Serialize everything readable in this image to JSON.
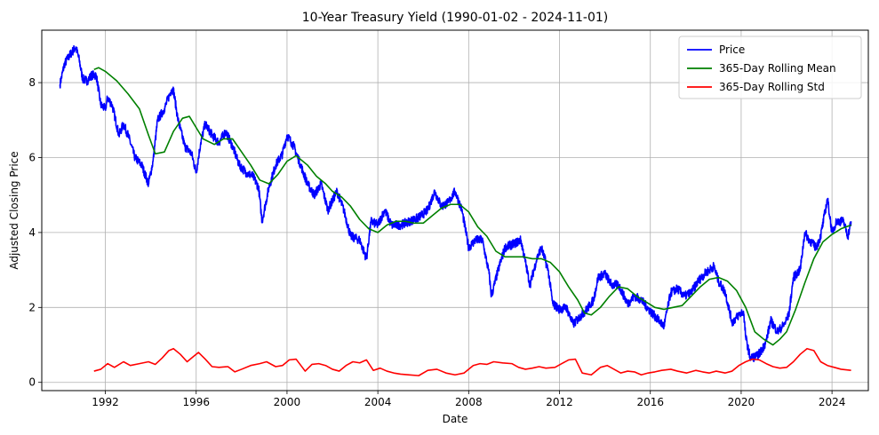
{
  "chart_data": {
    "type": "line",
    "title": "10-Year Treasury Yield (1990-01-02 - 2024-11-01)",
    "xlabel": "Date",
    "ylabel": "Adjusted Closing Price",
    "xlim": [
      1989.2,
      2025.6
    ],
    "ylim": [
      -0.22,
      9.4
    ],
    "xticks": [
      1992,
      1996,
      2000,
      2004,
      2008,
      2012,
      2016,
      2020,
      2024
    ],
    "xtick_labels": [
      "1992",
      "1996",
      "2000",
      "2004",
      "2008",
      "2012",
      "2016",
      "2020",
      "2024"
    ],
    "yticks": [
      0,
      2,
      4,
      6,
      8
    ],
    "ytick_labels": [
      "0",
      "2",
      "4",
      "6",
      "8"
    ],
    "grid": true,
    "legend_position": "top-right",
    "series": [
      {
        "name": "Price",
        "color": "#0000ff",
        "jitter": 0.12,
        "x": [
          1990.0,
          1990.2,
          1990.45,
          1990.7,
          1990.85,
          1991.0,
          1991.2,
          1991.4,
          1991.6,
          1991.8,
          1992.0,
          1992.1,
          1992.3,
          1992.6,
          1992.8,
          1993.0,
          1993.3,
          1993.6,
          1993.9,
          1994.1,
          1994.3,
          1994.6,
          1994.9,
          1995.0,
          1995.2,
          1995.5,
          1995.8,
          1996.0,
          1996.2,
          1996.4,
          1996.7,
          1997.0,
          1997.3,
          1997.6,
          1997.9,
          1998.2,
          1998.5,
          1998.75,
          1998.9,
          1999.2,
          1999.5,
          1999.8,
          2000.0,
          2000.3,
          2000.6,
          2000.9,
          2001.2,
          2001.5,
          2001.8,
          2002.2,
          2002.5,
          2002.8,
          2003.2,
          2003.5,
          2003.7,
          2004.0,
          2004.3,
          2004.6,
          2005.0,
          2005.4,
          2005.8,
          2006.2,
          2006.5,
          2006.8,
          2007.1,
          2007.4,
          2007.7,
          2008.0,
          2008.3,
          2008.6,
          2008.9,
          2009.0,
          2009.3,
          2009.6,
          2010.0,
          2010.3,
          2010.7,
          2011.0,
          2011.2,
          2011.5,
          2011.7,
          2012.0,
          2012.3,
          2012.6,
          2012.9,
          2013.2,
          2013.5,
          2013.7,
          2014.0,
          2014.3,
          2014.6,
          2015.0,
          2015.3,
          2015.6,
          2016.0,
          2016.3,
          2016.6,
          2016.9,
          2017.2,
          2017.5,
          2017.8,
          2018.1,
          2018.4,
          2018.8,
          2019.0,
          2019.3,
          2019.6,
          2019.9,
          2020.1,
          2020.2,
          2020.4,
          2020.7,
          2020.9,
          2021.1,
          2021.3,
          2021.6,
          2021.9,
          2022.1,
          2022.3,
          2022.6,
          2022.8,
          2023.0,
          2023.3,
          2023.5,
          2023.8,
          2024.0,
          2024.2,
          2024.5,
          2024.7,
          2024.84
        ],
        "y": [
          7.95,
          8.5,
          8.75,
          8.95,
          8.6,
          8.1,
          8.05,
          8.2,
          8.2,
          7.4,
          7.3,
          7.6,
          7.4,
          6.6,
          6.9,
          6.6,
          6.0,
          5.8,
          5.3,
          5.9,
          7.0,
          7.3,
          7.8,
          7.8,
          7.0,
          6.3,
          6.1,
          5.6,
          6.4,
          6.9,
          6.6,
          6.4,
          6.7,
          6.3,
          5.8,
          5.6,
          5.5,
          5.2,
          4.3,
          5.2,
          5.8,
          6.1,
          6.6,
          6.3,
          5.8,
          5.3,
          5.0,
          5.3,
          4.6,
          5.1,
          4.6,
          3.9,
          3.8,
          3.3,
          4.3,
          4.2,
          4.6,
          4.2,
          4.2,
          4.3,
          4.4,
          4.6,
          5.1,
          4.7,
          4.8,
          5.1,
          4.6,
          3.6,
          3.8,
          3.8,
          2.9,
          2.3,
          3.0,
          3.6,
          3.7,
          3.8,
          2.6,
          3.3,
          3.6,
          3.0,
          2.1,
          1.95,
          2.0,
          1.55,
          1.75,
          1.95,
          2.2,
          2.8,
          2.9,
          2.6,
          2.6,
          2.1,
          2.3,
          2.2,
          1.9,
          1.7,
          1.5,
          2.4,
          2.5,
          2.3,
          2.4,
          2.7,
          2.9,
          3.1,
          2.7,
          2.4,
          1.6,
          1.8,
          1.9,
          1.2,
          0.65,
          0.7,
          0.85,
          1.1,
          1.65,
          1.35,
          1.55,
          1.8,
          2.8,
          3.0,
          4.0,
          3.8,
          3.6,
          3.9,
          4.9,
          4.0,
          4.3,
          4.3,
          3.9,
          4.3
        ]
      },
      {
        "name": "365-Day Rolling Mean",
        "color": "#008000",
        "jitter": 0,
        "x": [
          1991.5,
          1991.7,
          1992.0,
          1992.5,
          1993.0,
          1993.5,
          1993.9,
          1994.2,
          1994.6,
          1995.0,
          1995.4,
          1995.7,
          1996.0,
          1996.3,
          1996.8,
          1997.2,
          1997.6,
          1998.0,
          1998.4,
          1998.8,
          1999.2,
          1999.6,
          2000.0,
          2000.4,
          2000.9,
          2001.3,
          2001.7,
          2002.0,
          2002.4,
          2002.8,
          2003.2,
          2003.6,
          2004.0,
          2004.4,
          2004.8,
          2005.2,
          2005.6,
          2006.0,
          2006.4,
          2006.8,
          2007.2,
          2007.6,
          2008.0,
          2008.4,
          2008.8,
          2009.2,
          2009.6,
          2010.0,
          2010.4,
          2010.8,
          2011.2,
          2011.6,
          2012.0,
          2012.4,
          2012.8,
          2013.1,
          2013.4,
          2013.8,
          2014.2,
          2014.6,
          2015.0,
          2015.4,
          2015.8,
          2016.2,
          2016.6,
          2017.0,
          2017.4,
          2017.8,
          2018.2,
          2018.6,
          2019.0,
          2019.4,
          2019.8,
          2020.2,
          2020.6,
          2021.0,
          2021.4,
          2021.7,
          2022.0,
          2022.4,
          2022.8,
          2023.2,
          2023.6,
          2024.0,
          2024.4,
          2024.84
        ],
        "y": [
          8.35,
          8.4,
          8.3,
          8.05,
          7.7,
          7.3,
          6.6,
          6.1,
          6.15,
          6.7,
          7.05,
          7.1,
          6.8,
          6.5,
          6.35,
          6.5,
          6.5,
          6.15,
          5.8,
          5.4,
          5.3,
          5.55,
          5.9,
          6.05,
          5.8,
          5.5,
          5.3,
          5.1,
          4.95,
          4.7,
          4.35,
          4.1,
          4.0,
          4.2,
          4.3,
          4.3,
          4.25,
          4.25,
          4.45,
          4.65,
          4.75,
          4.75,
          4.55,
          4.15,
          3.9,
          3.5,
          3.35,
          3.35,
          3.35,
          3.3,
          3.3,
          3.2,
          2.95,
          2.55,
          2.2,
          1.85,
          1.8,
          2.0,
          2.3,
          2.55,
          2.5,
          2.3,
          2.15,
          2.0,
          1.95,
          2.0,
          2.05,
          2.3,
          2.55,
          2.75,
          2.8,
          2.7,
          2.45,
          2.0,
          1.35,
          1.15,
          1.0,
          1.15,
          1.35,
          1.95,
          2.65,
          3.3,
          3.75,
          3.95,
          4.1,
          4.2
        ]
      },
      {
        "name": "365-Day Rolling Std",
        "color": "#ff0000",
        "jitter": 0,
        "x": [
          1991.5,
          1991.8,
          1992.1,
          1992.4,
          1992.8,
          1993.1,
          1993.5,
          1993.9,
          1994.2,
          1994.5,
          1994.8,
          1995.0,
          1995.3,
          1995.6,
          1995.9,
          1996.1,
          1996.4,
          1996.7,
          1997.0,
          1997.4,
          1997.7,
          1998.0,
          1998.4,
          1998.8,
          1999.1,
          1999.5,
          1999.8,
          2000.1,
          2000.4,
          2000.8,
          2001.1,
          2001.4,
          2001.7,
          2002.0,
          2002.3,
          2002.6,
          2002.9,
          2003.2,
          2003.5,
          2003.8,
          2004.1,
          2004.4,
          2004.7,
          2005.0,
          2005.4,
          2005.8,
          2006.2,
          2006.6,
          2007.0,
          2007.4,
          2007.8,
          2008.2,
          2008.5,
          2008.8,
          2009.1,
          2009.5,
          2009.9,
          2010.2,
          2010.5,
          2010.8,
          2011.1,
          2011.4,
          2011.8,
          2012.1,
          2012.4,
          2012.7,
          2013.0,
          2013.4,
          2013.8,
          2014.1,
          2014.4,
          2014.7,
          2015.0,
          2015.3,
          2015.6,
          2015.9,
          2016.2,
          2016.5,
          2016.9,
          2017.2,
          2017.6,
          2018.0,
          2018.3,
          2018.6,
          2018.9,
          2019.3,
          2019.6,
          2019.9,
          2020.2,
          2020.5,
          2020.8,
          2021.1,
          2021.4,
          2021.7,
          2022.0,
          2022.3,
          2022.6,
          2022.9,
          2023.2,
          2023.5,
          2023.8,
          2024.1,
          2024.4,
          2024.84
        ],
        "y": [
          0.3,
          0.35,
          0.5,
          0.4,
          0.55,
          0.45,
          0.5,
          0.55,
          0.48,
          0.65,
          0.85,
          0.9,
          0.75,
          0.55,
          0.7,
          0.8,
          0.62,
          0.42,
          0.4,
          0.42,
          0.28,
          0.35,
          0.45,
          0.5,
          0.55,
          0.42,
          0.45,
          0.6,
          0.62,
          0.3,
          0.48,
          0.5,
          0.45,
          0.35,
          0.3,
          0.45,
          0.55,
          0.52,
          0.6,
          0.32,
          0.38,
          0.3,
          0.25,
          0.22,
          0.2,
          0.18,
          0.32,
          0.35,
          0.25,
          0.2,
          0.25,
          0.45,
          0.5,
          0.48,
          0.55,
          0.52,
          0.5,
          0.4,
          0.35,
          0.38,
          0.42,
          0.38,
          0.4,
          0.5,
          0.6,
          0.62,
          0.25,
          0.2,
          0.4,
          0.45,
          0.35,
          0.25,
          0.3,
          0.28,
          0.2,
          0.25,
          0.28,
          0.32,
          0.35,
          0.3,
          0.25,
          0.32,
          0.28,
          0.25,
          0.3,
          0.25,
          0.3,
          0.45,
          0.55,
          0.62,
          0.6,
          0.5,
          0.42,
          0.38,
          0.4,
          0.55,
          0.75,
          0.9,
          0.85,
          0.55,
          0.45,
          0.4,
          0.35,
          0.32
        ]
      }
    ]
  }
}
